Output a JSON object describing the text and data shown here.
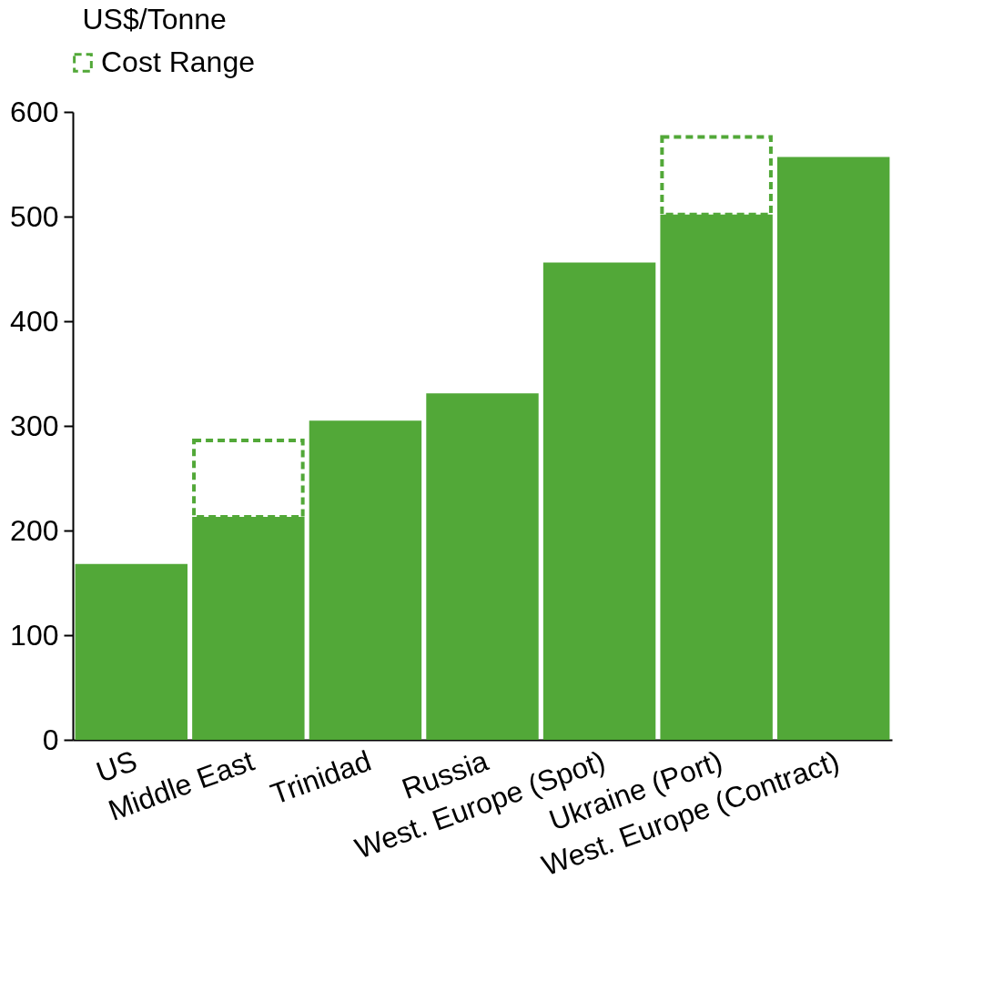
{
  "chart_data": {
    "type": "bar",
    "ylabel": "US$/Tonne",
    "categories": [
      "US",
      "Middle East",
      "Trinidad",
      "Russia",
      "West. Europe (Spot)",
      "Ukraine (Port)",
      "West. Europe (Contract)"
    ],
    "stacked": true,
    "series": [
      {
        "color": "#52a838",
        "values": [
          168,
          213,
          305,
          331,
          456,
          502,
          557
        ]
      },
      {
        "name": "Cost Range",
        "color": "#52a838",
        "line_style": "dashed",
        "values": [
          null,
          73,
          null,
          null,
          null,
          74,
          null
        ]
      }
    ],
    "ylim": [
      0,
      600
    ],
    "yticks": [
      0,
      100,
      200,
      300,
      400,
      500,
      600
    ],
    "grid": false,
    "legend": "top left"
  }
}
